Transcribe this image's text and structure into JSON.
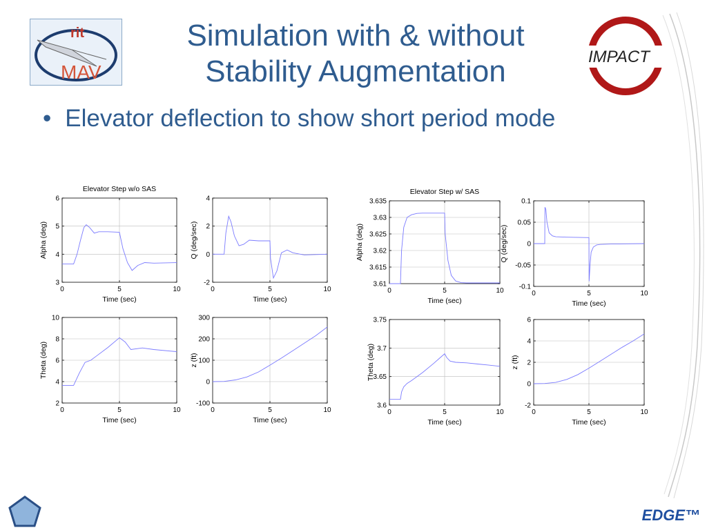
{
  "slide": {
    "title_line1": "Simulation with & without",
    "title_line2": "Stability Augmentation",
    "bullet": "Elevator deflection to show short period mode",
    "logo_left": {
      "top": "rit",
      "bottom": "MAV"
    },
    "logo_right": "IMPACT",
    "footer_brand": "EDGE™",
    "colors": {
      "text": "#2f5c8f",
      "curve": "#7a7aff",
      "footer": "#1f4fa0"
    }
  },
  "chart_data": [
    {
      "type": "line",
      "title": "Elevator Step w/o SAS",
      "xlabel": "Time (sec)",
      "ylabel": "Alpha (deg)",
      "xlim": [
        0,
        10
      ],
      "ylim": [
        3,
        6
      ],
      "xticks": [
        "0",
        "5",
        "10"
      ],
      "yticks": [
        "3",
        "4",
        "5",
        "6"
      ],
      "grid": true,
      "series": [
        {
          "x": [
            0,
            1,
            1.3,
            1.6,
            1.9,
            2.1,
            2.4,
            2.8,
            3.2,
            4,
            5,
            5.3,
            5.7,
            6.1,
            6.6,
            7.2,
            8,
            10
          ],
          "y": [
            3.65,
            3.65,
            4.0,
            4.5,
            4.95,
            5.05,
            4.95,
            4.75,
            4.8,
            4.8,
            4.78,
            4.2,
            3.7,
            3.42,
            3.6,
            3.7,
            3.68,
            3.7
          ]
        }
      ]
    },
    {
      "type": "line",
      "title": "",
      "xlabel": "Time (sec)",
      "ylabel": "Q (deg/sec)",
      "xlim": [
        0,
        10
      ],
      "ylim": [
        -2,
        4
      ],
      "xticks": [
        "0",
        "5",
        "10"
      ],
      "yticks": [
        "-2",
        "0",
        "2",
        "4"
      ],
      "grid": true,
      "series": [
        {
          "x": [
            0,
            1,
            1.15,
            1.4,
            1.6,
            1.9,
            2.3,
            2.7,
            3.2,
            4,
            5,
            5.05,
            5.3,
            5.6,
            6,
            6.5,
            7,
            8,
            10
          ],
          "y": [
            0,
            0,
            1.5,
            2.7,
            2.3,
            1.3,
            0.6,
            0.7,
            1.0,
            0.95,
            0.95,
            -0.3,
            -1.7,
            -1.2,
            0.1,
            0.3,
            0.1,
            -0.05,
            0
          ]
        }
      ]
    },
    {
      "type": "line",
      "title": "",
      "xlabel": "Time (sec)",
      "ylabel": "Theta (deg)",
      "xlim": [
        0,
        10
      ],
      "ylim": [
        2,
        10
      ],
      "xticks": [
        "0",
        "5",
        "10"
      ],
      "yticks": [
        "2",
        "4",
        "6",
        "8",
        "10"
      ],
      "grid": true,
      "series": [
        {
          "x": [
            0,
            1,
            1.5,
            2,
            2.5,
            3,
            4,
            5,
            5.5,
            6,
            7,
            8,
            10
          ],
          "y": [
            3.65,
            3.65,
            4.8,
            5.8,
            6.0,
            6.4,
            7.2,
            8.1,
            7.7,
            7.0,
            7.15,
            7.0,
            6.8
          ]
        }
      ]
    },
    {
      "type": "line",
      "title": "",
      "xlabel": "Time (sec)",
      "ylabel": "z (ft)",
      "xlim": [
        0,
        10
      ],
      "ylim": [
        -100,
        300
      ],
      "xticks": [
        "0",
        "5",
        "10"
      ],
      "yticks": [
        "-100",
        "0",
        "100",
        "200",
        "300"
      ],
      "grid": true,
      "series": [
        {
          "x": [
            0,
            1,
            2,
            3,
            4,
            5,
            6,
            7,
            8,
            9,
            10
          ],
          "y": [
            0,
            1,
            8,
            22,
            45,
            77,
            110,
            145,
            180,
            215,
            255
          ]
        }
      ]
    },
    {
      "type": "line",
      "title": "Elevator Step w/ SAS",
      "xlabel": "Time (sec)",
      "ylabel": "Alpha (deg)",
      "xlim": [
        0,
        10
      ],
      "ylim": [
        3.61,
        3.635
      ],
      "xticks": [
        "0",
        "5",
        "10"
      ],
      "yticks": [
        "3.61",
        "3.615",
        "3.62",
        "3.625",
        "3.63",
        "3.635"
      ],
      "grid": true,
      "series": [
        {
          "x": [
            0,
            1,
            1.1,
            1.3,
            1.6,
            2,
            2.5,
            3,
            5,
            5.05,
            5.3,
            5.6,
            6,
            6.5,
            7,
            10
          ],
          "y": [
            3.61,
            3.61,
            3.62,
            3.627,
            3.63,
            3.6308,
            3.6312,
            3.6313,
            3.6313,
            3.625,
            3.617,
            3.6125,
            3.6108,
            3.6103,
            3.6102,
            3.6102
          ]
        }
      ]
    },
    {
      "type": "line",
      "title": "",
      "xlabel": "Time (sec)",
      "ylabel": "Q (deg/sec)",
      "xlim": [
        0,
        10
      ],
      "ylim": [
        -0.1,
        0.1
      ],
      "xticks": [
        "0",
        "5",
        "10"
      ],
      "yticks": [
        "-0.1",
        "-0.05",
        "0",
        "0.05",
        "0.1"
      ],
      "grid": true,
      "series": [
        {
          "x": [
            0,
            1,
            1.02,
            1.1,
            1.2,
            1.4,
            1.7,
            2,
            3,
            5,
            5.02,
            5.1,
            5.2,
            5.4,
            5.7,
            6,
            7,
            10
          ],
          "y": [
            0,
            0,
            0.085,
            0.08,
            0.05,
            0.025,
            0.018,
            0.016,
            0.015,
            0.014,
            -0.088,
            -0.05,
            -0.02,
            -0.008,
            -0.003,
            -0.002,
            -0.001,
            0
          ]
        }
      ]
    },
    {
      "type": "line",
      "title": "",
      "xlabel": "Time (sec)",
      "ylabel": "Theta (deg)",
      "xlim": [
        0,
        10
      ],
      "ylim": [
        3.6,
        3.75
      ],
      "xticks": [
        "0",
        "5",
        "10"
      ],
      "yticks": [
        "3.6",
        "3.65",
        "3.7",
        "3.75"
      ],
      "grid": true,
      "series": [
        {
          "x": [
            0,
            1,
            1.1,
            1.3,
            1.6,
            2,
            3,
            4,
            5,
            5.2,
            5.5,
            6,
            7,
            8,
            9,
            10
          ],
          "y": [
            3.61,
            3.61,
            3.623,
            3.632,
            3.638,
            3.643,
            3.657,
            3.673,
            3.69,
            3.683,
            3.677,
            3.675,
            3.674,
            3.672,
            3.67,
            3.668
          ]
        }
      ]
    },
    {
      "type": "line",
      "title": "",
      "xlabel": "Time (sec)",
      "ylabel": "z (ft)",
      "xlim": [
        0,
        10
      ],
      "ylim": [
        -2,
        6
      ],
      "xticks": [
        "0",
        "5",
        "10"
      ],
      "yticks": [
        "-2",
        "0",
        "2",
        "4",
        "6"
      ],
      "grid": true,
      "series": [
        {
          "x": [
            0,
            1,
            2,
            3,
            4,
            5,
            6,
            7,
            8,
            9,
            10
          ],
          "y": [
            0,
            0.02,
            0.12,
            0.4,
            0.85,
            1.45,
            2.1,
            2.75,
            3.4,
            4.0,
            4.65
          ]
        }
      ]
    }
  ]
}
